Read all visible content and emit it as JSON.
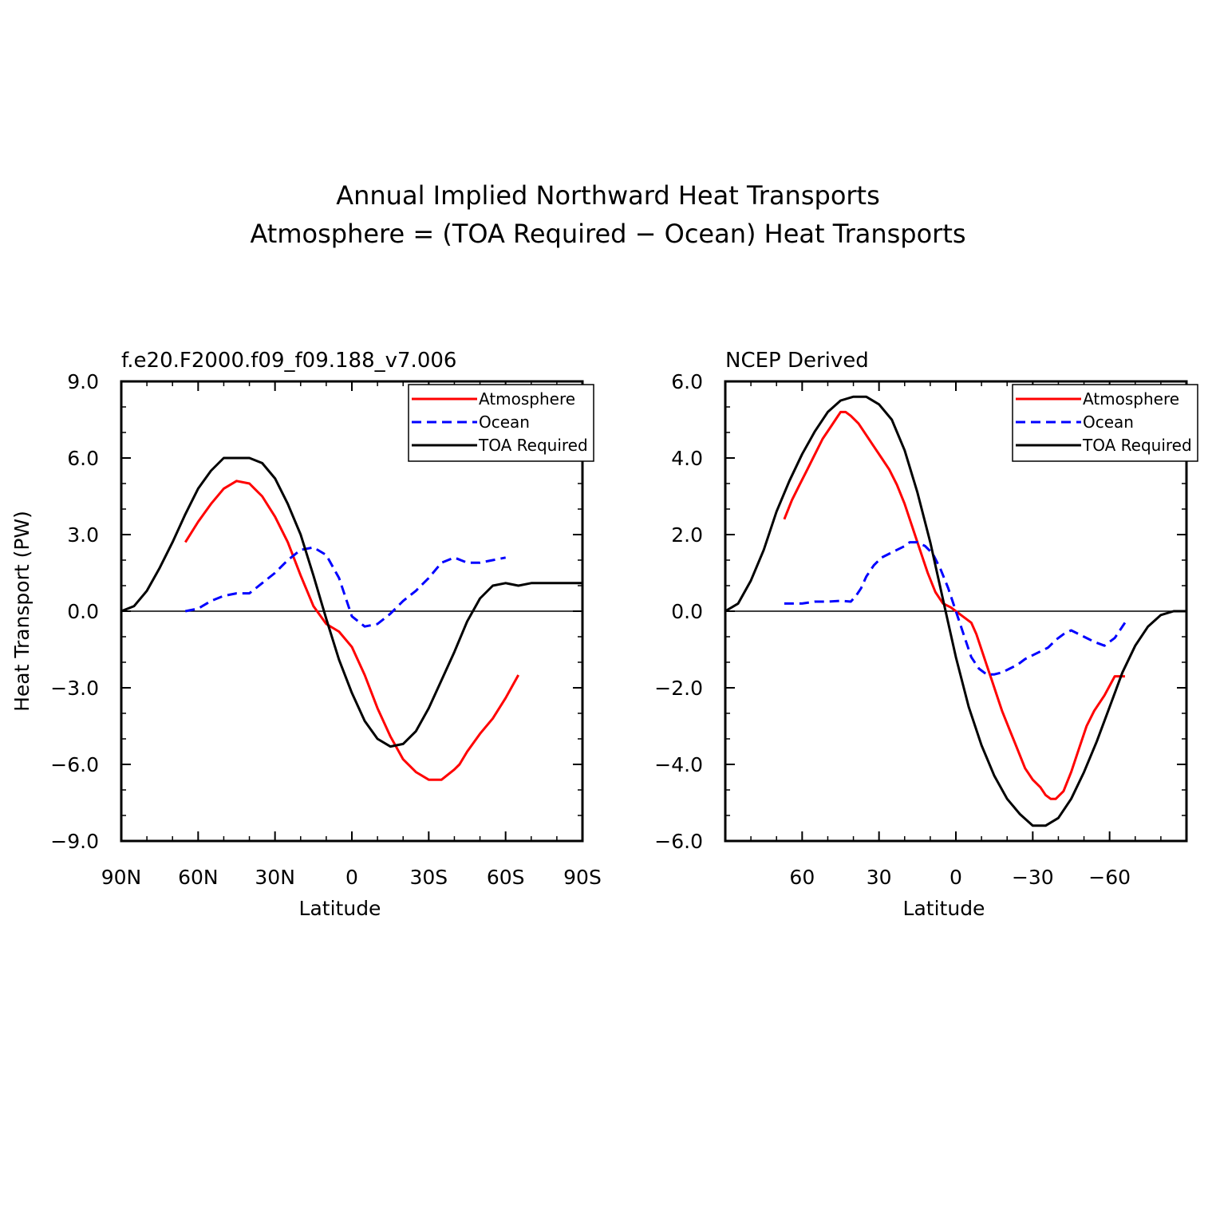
{
  "figure": {
    "title_line1": "Annual Implied Northward Heat Transports",
    "title_line2": "Atmosphere = (TOA Required − Ocean) Heat Transports"
  },
  "chart_data": [
    {
      "type": "line",
      "title": "f.e20.F2000.f09_f09.188_v7.006",
      "xlabel": "Latitude",
      "ylabel": "Heat Transport (PW)",
      "xlim": [
        90,
        -90
      ],
      "ylim": [
        -9,
        9
      ],
      "xticks": [
        90,
        60,
        30,
        0,
        -30,
        -60,
        -90
      ],
      "xtick_labels": [
        "90N",
        "60N",
        "30N",
        "0",
        "30S",
        "60S",
        "90S"
      ],
      "yticks": [
        9,
        6,
        3,
        0,
        -3,
        -6,
        -9
      ],
      "ytick_labels": [
        "9.0",
        "6.0",
        "3.0",
        "0.0",
        "−3.0",
        "−6.0",
        "−9.0"
      ],
      "legend": "top-right",
      "series": [
        {
          "name": "Atmosphere",
          "color": "#ff0000",
          "dash": "solid",
          "x": [
            65,
            60,
            55,
            50,
            45,
            40,
            38,
            35,
            30,
            25,
            20,
            15,
            10,
            5,
            0,
            -5,
            -10,
            -15,
            -20,
            -25,
            -30,
            -35,
            -40,
            -42,
            -45,
            -50,
            -55,
            -60,
            -65
          ],
          "y": [
            2.7,
            3.5,
            4.2,
            4.8,
            5.1,
            5.0,
            4.8,
            4.5,
            3.7,
            2.7,
            1.4,
            0.2,
            -0.5,
            -0.8,
            -1.4,
            -2.5,
            -3.8,
            -4.9,
            -5.8,
            -6.3,
            -6.6,
            -6.6,
            -6.2,
            -6.0,
            -5.5,
            -4.8,
            -4.2,
            -3.4,
            -2.5
          ]
        },
        {
          "name": "Ocean",
          "color": "#0000ff",
          "dash": "dashed",
          "x": [
            65,
            60,
            55,
            50,
            45,
            40,
            35,
            30,
            25,
            20,
            15,
            10,
            5,
            0,
            -5,
            -10,
            -15,
            -20,
            -25,
            -30,
            -35,
            -40,
            -45,
            -50,
            -55,
            -60
          ],
          "y": [
            0.0,
            0.1,
            0.4,
            0.6,
            0.7,
            0.7,
            1.1,
            1.5,
            2.0,
            2.4,
            2.5,
            2.2,
            1.3,
            -0.2,
            -0.6,
            -0.5,
            -0.1,
            0.4,
            0.8,
            1.3,
            1.9,
            2.1,
            1.9,
            1.9,
            2.0,
            2.1
          ]
        },
        {
          "name": "TOA Required",
          "color": "#000000",
          "dash": "solid",
          "x": [
            90,
            85,
            80,
            75,
            70,
            65,
            60,
            55,
            50,
            45,
            40,
            35,
            30,
            25,
            20,
            15,
            10,
            5,
            0,
            -5,
            -10,
            -15,
            -20,
            -25,
            -30,
            -35,
            -40,
            -45,
            -50,
            -55,
            -60,
            -65,
            -70,
            -75,
            -80,
            -85,
            -90
          ],
          "y": [
            0.0,
            0.2,
            0.8,
            1.7,
            2.7,
            3.8,
            4.8,
            5.5,
            6.0,
            6.0,
            6.0,
            5.8,
            5.2,
            4.2,
            3.0,
            1.4,
            -0.3,
            -1.9,
            -3.2,
            -4.3,
            -5.0,
            -5.3,
            -5.2,
            -4.7,
            -3.8,
            -2.7,
            -1.6,
            -0.4,
            0.5,
            1.0,
            1.1,
            1.0,
            1.1,
            1.1,
            1.1,
            1.1,
            1.1
          ]
        }
      ]
    },
    {
      "type": "line",
      "title": "NCEP Derived",
      "xlabel": "Latitude",
      "ylabel": "",
      "xlim": [
        90,
        -90
      ],
      "ylim": [
        -6,
        6
      ],
      "xticks": [
        60,
        30,
        0,
        -30,
        -60
      ],
      "xtick_labels": [
        "60",
        "30",
        "0",
        "−30",
        "−60"
      ],
      "yticks": [
        6,
        4,
        2,
        0,
        -2,
        -4,
        -6
      ],
      "ytick_labels": [
        "6.0",
        "4.0",
        "2.0",
        "0.0",
        "−2.0",
        "−4.0",
        "−6.0"
      ],
      "legend": "top-right",
      "series": [
        {
          "name": "Atmosphere",
          "color": "#ff0000",
          "dash": "solid",
          "x": [
            67,
            64,
            61,
            58,
            55,
            52,
            49,
            47,
            45,
            43,
            41,
            38,
            35,
            32,
            29,
            26,
            23,
            20,
            17,
            14,
            11,
            8,
            5,
            2,
            0,
            -2,
            -4,
            -6,
            -8,
            -10,
            -12,
            -14,
            -16,
            -18,
            -21,
            -24,
            -27,
            -30,
            -33,
            -35,
            -37,
            -39,
            -42,
            -45,
            -48,
            -51,
            -54,
            -58,
            -62,
            -66
          ],
          "y": [
            2.4,
            2.9,
            3.3,
            3.7,
            4.1,
            4.5,
            4.8,
            5.0,
            5.2,
            5.2,
            5.1,
            4.9,
            4.6,
            4.3,
            4.0,
            3.7,
            3.3,
            2.8,
            2.2,
            1.6,
            1.0,
            0.5,
            0.2,
            0.1,
            0.0,
            -0.1,
            -0.2,
            -0.3,
            -0.6,
            -1.0,
            -1.4,
            -1.8,
            -2.2,
            -2.6,
            -3.1,
            -3.6,
            -4.1,
            -4.4,
            -4.6,
            -4.8,
            -4.9,
            -4.9,
            -4.7,
            -4.2,
            -3.6,
            -3.0,
            -2.6,
            -2.2,
            -1.7,
            -1.7
          ]
        },
        {
          "name": "Ocean",
          "color": "#0000ff",
          "dash": "dashed",
          "x": [
            67,
            60,
            55,
            50,
            45,
            41,
            39,
            37,
            35,
            32,
            29,
            26,
            23,
            20,
            18,
            15,
            12,
            9,
            6,
            3,
            0,
            -3,
            -6,
            -9,
            -12,
            -15,
            -18,
            -21,
            -24,
            -27,
            -30,
            -33,
            -36,
            -39,
            -42,
            -45,
            -48,
            -51,
            -54,
            -58,
            -62,
            -66
          ],
          "y": [
            0.2,
            0.2,
            0.25,
            0.25,
            0.27,
            0.25,
            0.4,
            0.6,
            0.9,
            1.2,
            1.4,
            1.5,
            1.6,
            1.7,
            1.8,
            1.8,
            1.7,
            1.5,
            1.1,
            0.6,
            0.0,
            -0.6,
            -1.2,
            -1.5,
            -1.65,
            -1.65,
            -1.6,
            -1.5,
            -1.4,
            -1.25,
            -1.15,
            -1.05,
            -0.95,
            -0.75,
            -0.6,
            -0.5,
            -0.6,
            -0.7,
            -0.8,
            -0.9,
            -0.7,
            -0.3
          ]
        },
        {
          "name": "TOA Required",
          "color": "#000000",
          "dash": "solid",
          "x": [
            90,
            85,
            80,
            75,
            70,
            65,
            60,
            55,
            50,
            45,
            40,
            37,
            35,
            30,
            25,
            20,
            15,
            10,
            5,
            0,
            -5,
            -10,
            -15,
            -20,
            -25,
            -30,
            -35,
            -40,
            -45,
            -50,
            -55,
            -60,
            -65,
            -70,
            -75,
            -80,
            -85,
            -90
          ],
          "y": [
            0.0,
            0.2,
            0.8,
            1.6,
            2.6,
            3.4,
            4.1,
            4.7,
            5.2,
            5.5,
            5.6,
            5.6,
            5.6,
            5.4,
            5.0,
            4.2,
            3.1,
            1.8,
            0.3,
            -1.2,
            -2.5,
            -3.5,
            -4.3,
            -4.9,
            -5.3,
            -5.6,
            -5.6,
            -5.4,
            -4.9,
            -4.2,
            -3.4,
            -2.5,
            -1.6,
            -0.9,
            -0.4,
            -0.1,
            0.0,
            0.0
          ]
        }
      ]
    }
  ]
}
